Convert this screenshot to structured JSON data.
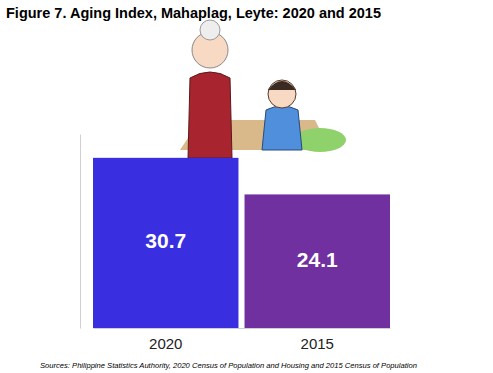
{
  "chart_data": {
    "type": "bar",
    "title": "Figure 7. Aging Index, Mahaplag, Leyte: 2020 and 2015",
    "source": "Sources: Philippine Statistics Authority, 2020 Census of Population and Housing and 2015 Census of Population",
    "categories": [
      "2020",
      "2015"
    ],
    "values": [
      30.7,
      24.1
    ],
    "colors": [
      "#3a2fe0",
      "#7030a0"
    ],
    "ylim": [
      0,
      35
    ],
    "yticks": [],
    "grid": false,
    "data_labels": true,
    "tick_labels": "x"
  }
}
